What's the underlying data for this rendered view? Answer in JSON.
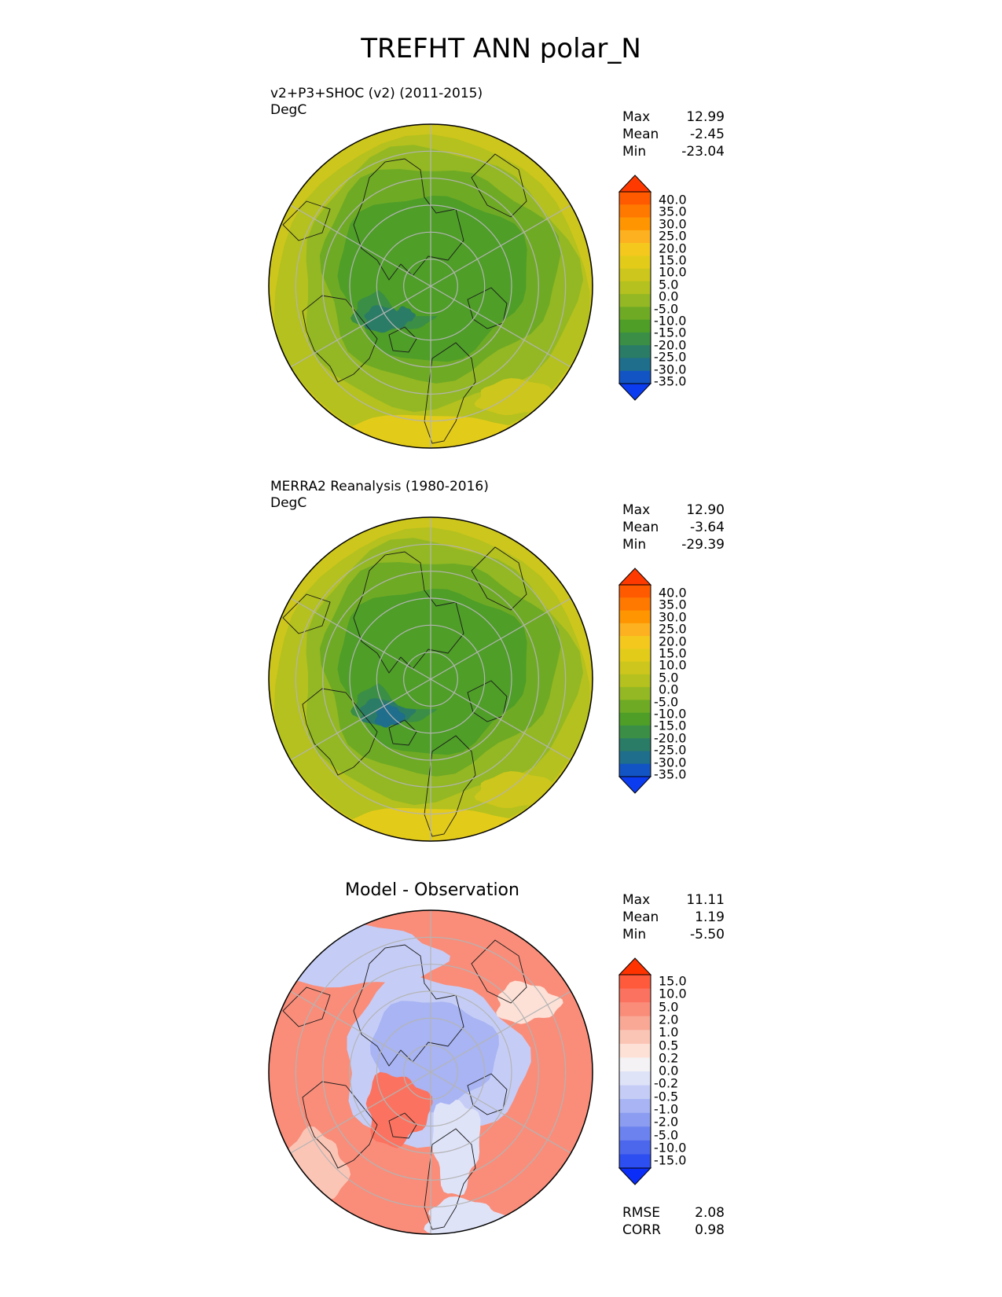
{
  "figure_title": "TREFHT ANN polar_N",
  "panels": [
    {
      "title_line1": "v2+P3+SHOC (v2) (2011-2015)",
      "title_line2": "DegC",
      "stats": [
        {
          "label": "Max",
          "value": "12.99"
        },
        {
          "label": "Mean",
          "value": "-2.45"
        },
        {
          "label": "Min",
          "value": "-23.04"
        }
      ],
      "colorbar_ticks": [
        "40.0",
        "35.0",
        "30.0",
        "25.0",
        "20.0",
        "15.0",
        "10.0",
        "5.0",
        "0.0",
        "-5.0",
        "-10.0",
        "-15.0",
        "-20.0",
        "-25.0",
        "-30.0",
        "-35.0"
      ]
    },
    {
      "title_line1": "MERRA2 Reanalysis (1980-2016)",
      "title_line2": "DegC",
      "stats": [
        {
          "label": "Max",
          "value": "12.90"
        },
        {
          "label": "Mean",
          "value": "-3.64"
        },
        {
          "label": "Min",
          "value": "-29.39"
        }
      ],
      "colorbar_ticks": [
        "40.0",
        "35.0",
        "30.0",
        "25.0",
        "20.0",
        "15.0",
        "10.0",
        "5.0",
        "0.0",
        "-5.0",
        "-10.0",
        "-15.0",
        "-20.0",
        "-25.0",
        "-30.0",
        "-35.0"
      ]
    },
    {
      "title": "Model - Observation",
      "stats": [
        {
          "label": "Max",
          "value": "11.11"
        },
        {
          "label": "Mean",
          "value": "1.19"
        },
        {
          "label": "Min",
          "value": "-5.50"
        }
      ],
      "colorbar_ticks": [
        "15.0",
        "10.0",
        "5.0",
        "2.0",
        "1.0",
        "0.5",
        "0.2",
        "0.0",
        "-0.2",
        "-0.5",
        "-1.0",
        "-2.0",
        "-5.0",
        "-10.0",
        "-15.0"
      ],
      "metrics": [
        {
          "label": "RMSE",
          "value": "2.08"
        },
        {
          "label": "CORR",
          "value": "0.98"
        }
      ]
    }
  ],
  "colors": {
    "temp_scale": [
      "#ff3a00",
      "#ff5a00",
      "#ff7800",
      "#ff9500",
      "#fdb020",
      "#f5c81e",
      "#e3cb1a",
      "#cdc61c",
      "#b4c11e",
      "#93b823",
      "#6faa25",
      "#4e9e28",
      "#3b8e45",
      "#2b7c66",
      "#1e6e8c",
      "#1354c4",
      "#0b3cf0"
    ],
    "diff_scale": [
      "#ff3300",
      "#ff5a3c",
      "#fb7360",
      "#f98d7a",
      "#f9a896",
      "#fbc5b6",
      "#fde0d6",
      "#f4f2f4",
      "#dfe3f8",
      "#c5cdf6",
      "#a8b4f3",
      "#8b9cf1",
      "#6c82ee",
      "#4c67ec",
      "#2d4ef0",
      "#0b2df8"
    ],
    "graticule": "#b4b4b4",
    "coastline": "#1a1a1a"
  }
}
